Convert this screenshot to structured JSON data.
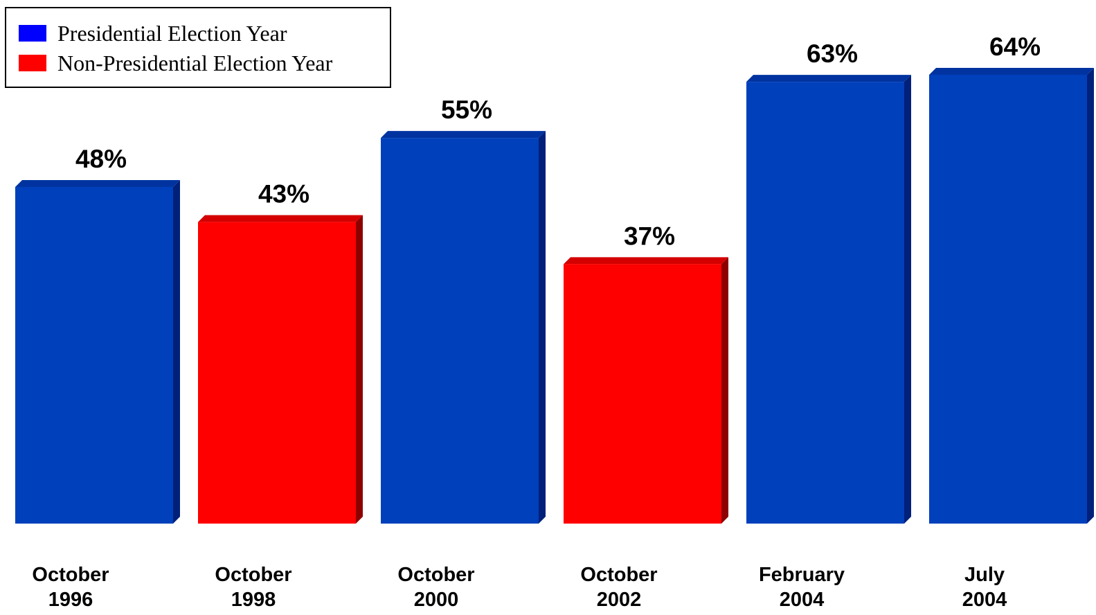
{
  "legend": {
    "presidential_label": "Presidential Election Year",
    "presidential_color": "#0000ff",
    "non_presidential_label": "Non-Presidential Election Year",
    "non_presidential_color": "#ff0000"
  },
  "chart_data": {
    "type": "bar",
    "title": "",
    "xlabel": "",
    "ylabel": "",
    "ylim": [
      0,
      64
    ],
    "grid": false,
    "legend_position": "top-left",
    "value_suffix": "%",
    "categories": [
      [
        "October",
        "1996"
      ],
      [
        "October",
        "1998"
      ],
      [
        "October",
        "2000"
      ],
      [
        "October",
        "2002"
      ],
      [
        "February",
        "2004"
      ],
      [
        "July",
        "2004"
      ]
    ],
    "values": [
      48,
      43,
      55,
      37,
      63,
      64
    ],
    "labels": [
      "48%",
      "43%",
      "55%",
      "37%",
      "63%",
      "64%"
    ],
    "election_type": [
      "presidential",
      "non-presidential",
      "presidential",
      "non-presidential",
      "presidential",
      "presidential"
    ],
    "colors": {
      "presidential": {
        "front": "#0040bb",
        "top": "#0033a0",
        "side": "#00207a"
      },
      "non-presidential": {
        "front": "#ff0000",
        "top": "#d40000",
        "side": "#8e0000"
      }
    }
  }
}
